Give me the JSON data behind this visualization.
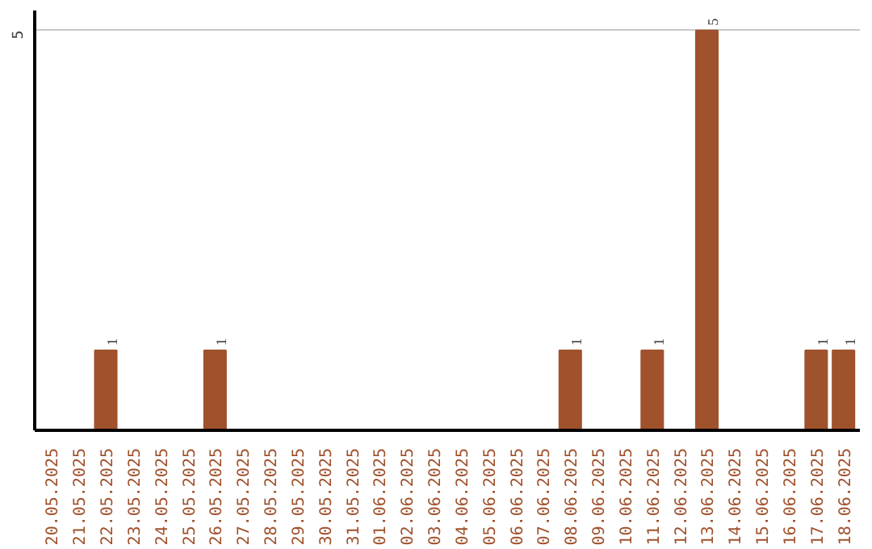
{
  "chart_data": {
    "type": "bar",
    "categories": [
      "20.05.2025",
      "21.05.2025",
      "22.05.2025",
      "23.05.2025",
      "24.05.2025",
      "25.05.2025",
      "26.05.2025",
      "27.05.2025",
      "28.05.2025",
      "29.05.2025",
      "30.05.2025",
      "31.05.2025",
      "01.06.2025",
      "02.06.2025",
      "03.06.2025",
      "04.06.2025",
      "05.06.2025",
      "06.06.2025",
      "07.06.2025",
      "08.06.2025",
      "09.06.2025",
      "10.06.2025",
      "11.06.2025",
      "12.06.2025",
      "13.06.2025",
      "14.06.2025",
      "15.06.2025",
      "16.06.2025",
      "17.06.2025",
      "18.06.2025"
    ],
    "values": [
      0,
      0,
      1,
      0,
      0,
      0,
      1,
      0,
      0,
      0,
      0,
      0,
      0,
      0,
      0,
      0,
      0,
      0,
      0,
      1,
      0,
      0,
      1,
      0,
      5,
      0,
      0,
      0,
      1,
      1
    ],
    "value_labels": [
      null,
      null,
      "1",
      null,
      null,
      null,
      "1",
      null,
      null,
      null,
      null,
      null,
      null,
      null,
      null,
      null,
      null,
      null,
      null,
      "1",
      null,
      null,
      "1",
      null,
      "5",
      null,
      null,
      null,
      "1",
      "1"
    ],
    "color": "#a0522d",
    "ylim": [
      0,
      5.25
    ],
    "yticks": [
      5
    ],
    "grid": "y"
  }
}
